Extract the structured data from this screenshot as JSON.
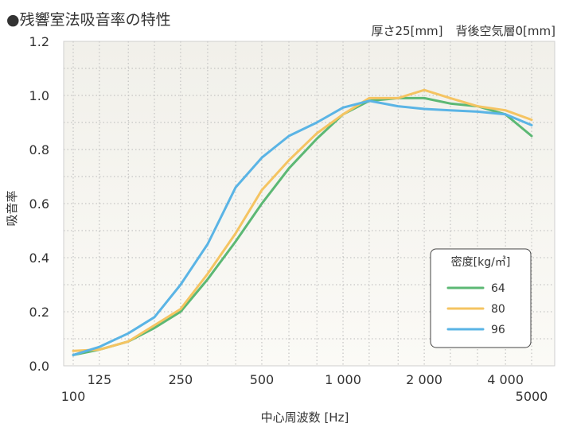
{
  "header": {
    "title": "●残響室法吸音率の特性",
    "thickness": "厚さ25[mm]",
    "air_layer": "背後空気層0[mm]"
  },
  "chart_data": {
    "type": "line",
    "title": "残響室法吸音率の特性",
    "xlabel": "中心周波数 [Hz]",
    "ylabel": "吸音率",
    "xscale": "log",
    "xlim": [
      100,
      5000
    ],
    "ylim": [
      0,
      1.2
    ],
    "yticks": [
      0.0,
      0.2,
      0.4,
      0.6,
      0.8,
      1.0,
      1.2
    ],
    "ytick_labels": [
      "0.0",
      "0.2",
      "0.4",
      "0.6",
      "0.8",
      "1.0",
      "1.2"
    ],
    "xtick_labels_top": [
      {
        "value": 125,
        "label": "125"
      },
      {
        "value": 250,
        "label": "250"
      },
      {
        "value": 500,
        "label": "500"
      },
      {
        "value": 1000,
        "label": "1 000"
      },
      {
        "value": 2000,
        "label": "2 000"
      },
      {
        "value": 4000,
        "label": "4 000"
      }
    ],
    "xtick_labels_bottom": [
      {
        "value": 100,
        "label": "100"
      },
      {
        "value": 5000,
        "label": "5000"
      }
    ],
    "x": [
      100,
      125,
      160,
      200,
      250,
      315,
      400,
      500,
      630,
      800,
      1000,
      1250,
      1600,
      2000,
      2500,
      3150,
      4000,
      5000
    ],
    "legend_title": "密度[kg/㎥]",
    "legend_position": "bottom-right",
    "series": [
      {
        "name": "64",
        "color": "#5cb874",
        "values": [
          0.04,
          0.06,
          0.09,
          0.14,
          0.2,
          0.32,
          0.46,
          0.6,
          0.73,
          0.84,
          0.93,
          0.98,
          0.99,
          0.99,
          0.97,
          0.96,
          0.93,
          0.85
        ]
      },
      {
        "name": "80",
        "color": "#f5c462",
        "values": [
          0.055,
          0.06,
          0.09,
          0.15,
          0.21,
          0.34,
          0.49,
          0.65,
          0.76,
          0.86,
          0.93,
          0.99,
          0.99,
          1.02,
          0.99,
          0.96,
          0.945,
          0.91
        ]
      },
      {
        "name": "96",
        "color": "#5ab4e5",
        "values": [
          0.04,
          0.07,
          0.12,
          0.18,
          0.3,
          0.45,
          0.66,
          0.77,
          0.85,
          0.9,
          0.955,
          0.98,
          0.96,
          0.95,
          0.945,
          0.94,
          0.93,
          0.89
        ]
      }
    ]
  }
}
